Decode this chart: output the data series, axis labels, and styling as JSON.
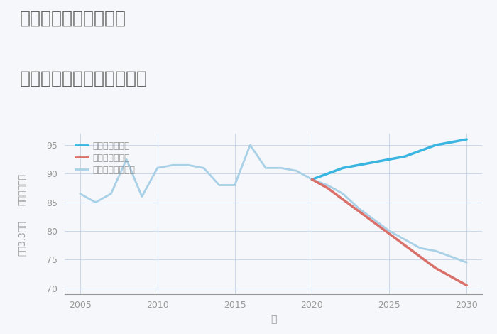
{
  "title_line1": "愛知県半田市瑞穂町の",
  "title_line2": "中古マンションの価格推移",
  "xlabel": "年",
  "ylabel_top": "単価（万円）",
  "ylabel_bottom": "坪（3.3㎡）",
  "xlim": [
    2004,
    2031
  ],
  "ylim": [
    69,
    97
  ],
  "yticks": [
    70,
    75,
    80,
    85,
    90,
    95
  ],
  "xticks": [
    2005,
    2010,
    2015,
    2020,
    2025,
    2030
  ],
  "background_color": "#f5f7fa",
  "grid_color": "#c8d8ec",
  "normal_scenario": {
    "years": [
      2005,
      2006,
      2007,
      2008,
      2009,
      2010,
      2011,
      2012,
      2013,
      2014,
      2015,
      2016,
      2017,
      2018,
      2019,
      2020,
      2021,
      2022,
      2023,
      2024,
      2025,
      2026,
      2027,
      2028,
      2029,
      2030
    ],
    "values": [
      86.5,
      85.0,
      86.5,
      92.5,
      86.0,
      91.0,
      91.5,
      91.5,
      91.0,
      88.0,
      88.0,
      95.0,
      91.0,
      91.0,
      90.5,
      89.0,
      88.0,
      86.5,
      84.0,
      82.0,
      80.0,
      78.5,
      77.0,
      76.5,
      75.5,
      74.5
    ],
    "color": "#a8d0e6",
    "linewidth": 2.0,
    "label": "ノーマルシナリオ"
  },
  "good_scenario": {
    "years": [
      2020,
      2021,
      2022,
      2023,
      2024,
      2025,
      2026,
      2027,
      2028,
      2029,
      2030
    ],
    "values": [
      89.0,
      90.0,
      91.0,
      91.5,
      92.0,
      92.5,
      93.0,
      94.0,
      95.0,
      95.5,
      96.0
    ],
    "color": "#3ab4e0",
    "linewidth": 2.5,
    "label": "グッドシナリオ"
  },
  "bad_scenario": {
    "years": [
      2020,
      2021,
      2022,
      2023,
      2024,
      2025,
      2026,
      2027,
      2028,
      2029,
      2030
    ],
    "values": [
      89.0,
      87.5,
      85.5,
      83.5,
      81.5,
      79.5,
      77.5,
      75.5,
      73.5,
      72.0,
      70.5
    ],
    "color": "#d9706a",
    "linewidth": 2.5,
    "label": "バッドシナリオ"
  },
  "title_color": "#666666",
  "axis_color": "#999999",
  "tick_color": "#999999",
  "tick_fontsize": 9,
  "title_fontsize": 18
}
